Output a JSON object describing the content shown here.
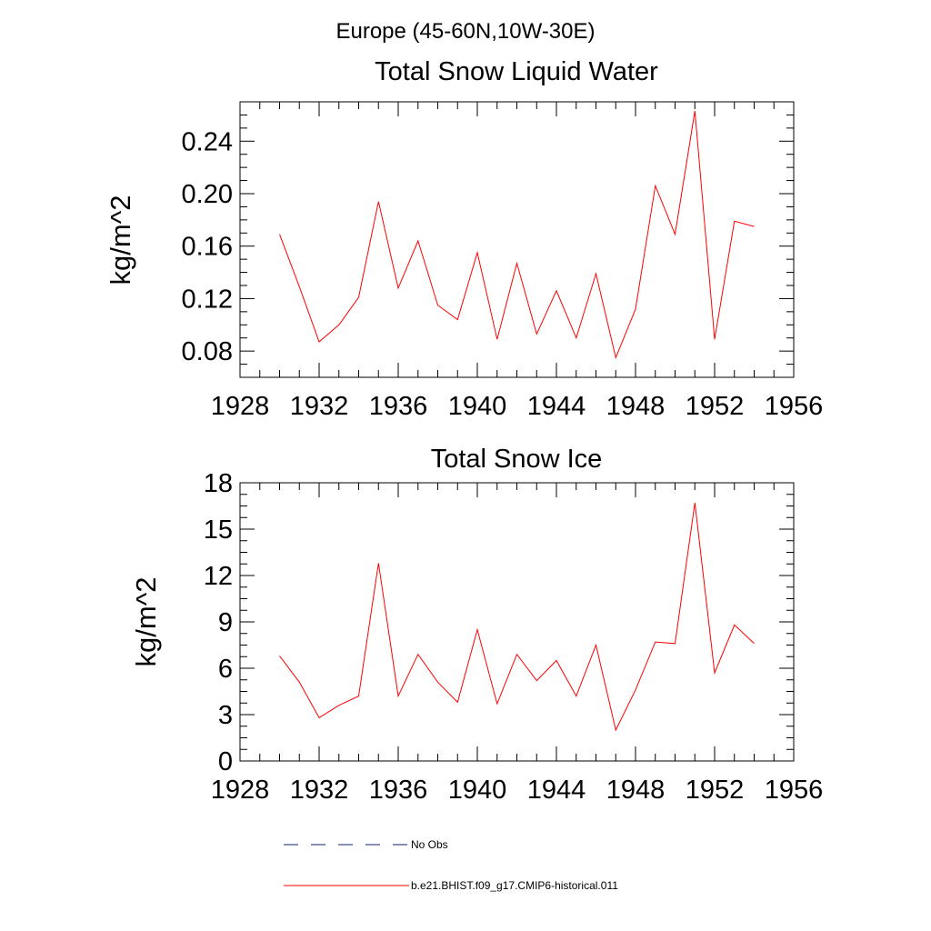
{
  "figure_title": "Europe (45-60N,10W-30E)",
  "chart_data": [
    {
      "type": "line",
      "title": "Total Snow Liquid Water",
      "xlabel": "",
      "ylabel": "kg/m^2",
      "xlim": [
        1928,
        1956
      ],
      "ylim": [
        0.06,
        0.27
      ],
      "x_ticks": [
        1928,
        1932,
        1936,
        1940,
        1944,
        1948,
        1952,
        1956
      ],
      "x_tick_labels": [
        "1928",
        "1932",
        "1936",
        "1940",
        "1944",
        "1948",
        "1952",
        "1956"
      ],
      "y_ticks": [
        0.08,
        0.12,
        0.16,
        0.2,
        0.24
      ],
      "y_tick_labels": [
        "0.08",
        "0.12",
        "0.16",
        "0.20",
        "0.24"
      ],
      "grid": false,
      "series": [
        {
          "name": "b.e21.BHIST.f09_g17.CMIP6-historical.011",
          "color": "#ff0000",
          "x": [
            1930,
            1931,
            1932,
            1933,
            1934,
            1935,
            1936,
            1937,
            1938,
            1939,
            1940,
            1941,
            1942,
            1943,
            1944,
            1945,
            1946,
            1947,
            1948,
            1949,
            1950,
            1951,
            1952,
            1953,
            1954
          ],
          "y": [
            0.169,
            0.129,
            0.087,
            0.1,
            0.121,
            0.194,
            0.128,
            0.164,
            0.115,
            0.104,
            0.155,
            0.089,
            0.147,
            0.093,
            0.126,
            0.09,
            0.139,
            0.075,
            0.112,
            0.206,
            0.169,
            0.263,
            0.089,
            0.179,
            0.175
          ]
        }
      ]
    },
    {
      "type": "line",
      "title": "Total Snow Ice",
      "xlabel": "",
      "ylabel": "kg/m^2",
      "xlim": [
        1928,
        1956
      ],
      "ylim": [
        0,
        18
      ],
      "x_ticks": [
        1928,
        1932,
        1936,
        1940,
        1944,
        1948,
        1952,
        1956
      ],
      "x_tick_labels": [
        "1928",
        "1932",
        "1936",
        "1940",
        "1944",
        "1948",
        "1952",
        "1956"
      ],
      "y_ticks": [
        0,
        3,
        6,
        9,
        12,
        15,
        18
      ],
      "y_tick_labels": [
        "0",
        "3",
        "6",
        "9",
        "12",
        "15",
        "18"
      ],
      "grid": false,
      "series": [
        {
          "name": "b.e21.BHIST.f09_g17.CMIP6-historical.011",
          "color": "#ff0000",
          "x": [
            1930,
            1931,
            1932,
            1933,
            1934,
            1935,
            1936,
            1937,
            1938,
            1939,
            1940,
            1941,
            1942,
            1943,
            1944,
            1945,
            1946,
            1947,
            1948,
            1949,
            1950,
            1951,
            1952,
            1953,
            1954
          ],
          "y": [
            6.8,
            5.1,
            2.8,
            3.6,
            4.2,
            12.8,
            4.2,
            6.9,
            5.1,
            3.8,
            8.5,
            3.7,
            6.9,
            5.2,
            6.5,
            4.2,
            7.5,
            2.0,
            4.6,
            7.7,
            7.6,
            16.7,
            5.7,
            8.8,
            7.6
          ]
        }
      ]
    }
  ],
  "legend": {
    "placement": "bottom",
    "entries": [
      {
        "label": "No Obs",
        "style": "dashed",
        "color": "#0f1f6b"
      },
      {
        "label": "b.e21.BHIST.f09_g17.CMIP6-historical.011",
        "style": "solid",
        "color": "#ff0000"
      }
    ]
  }
}
